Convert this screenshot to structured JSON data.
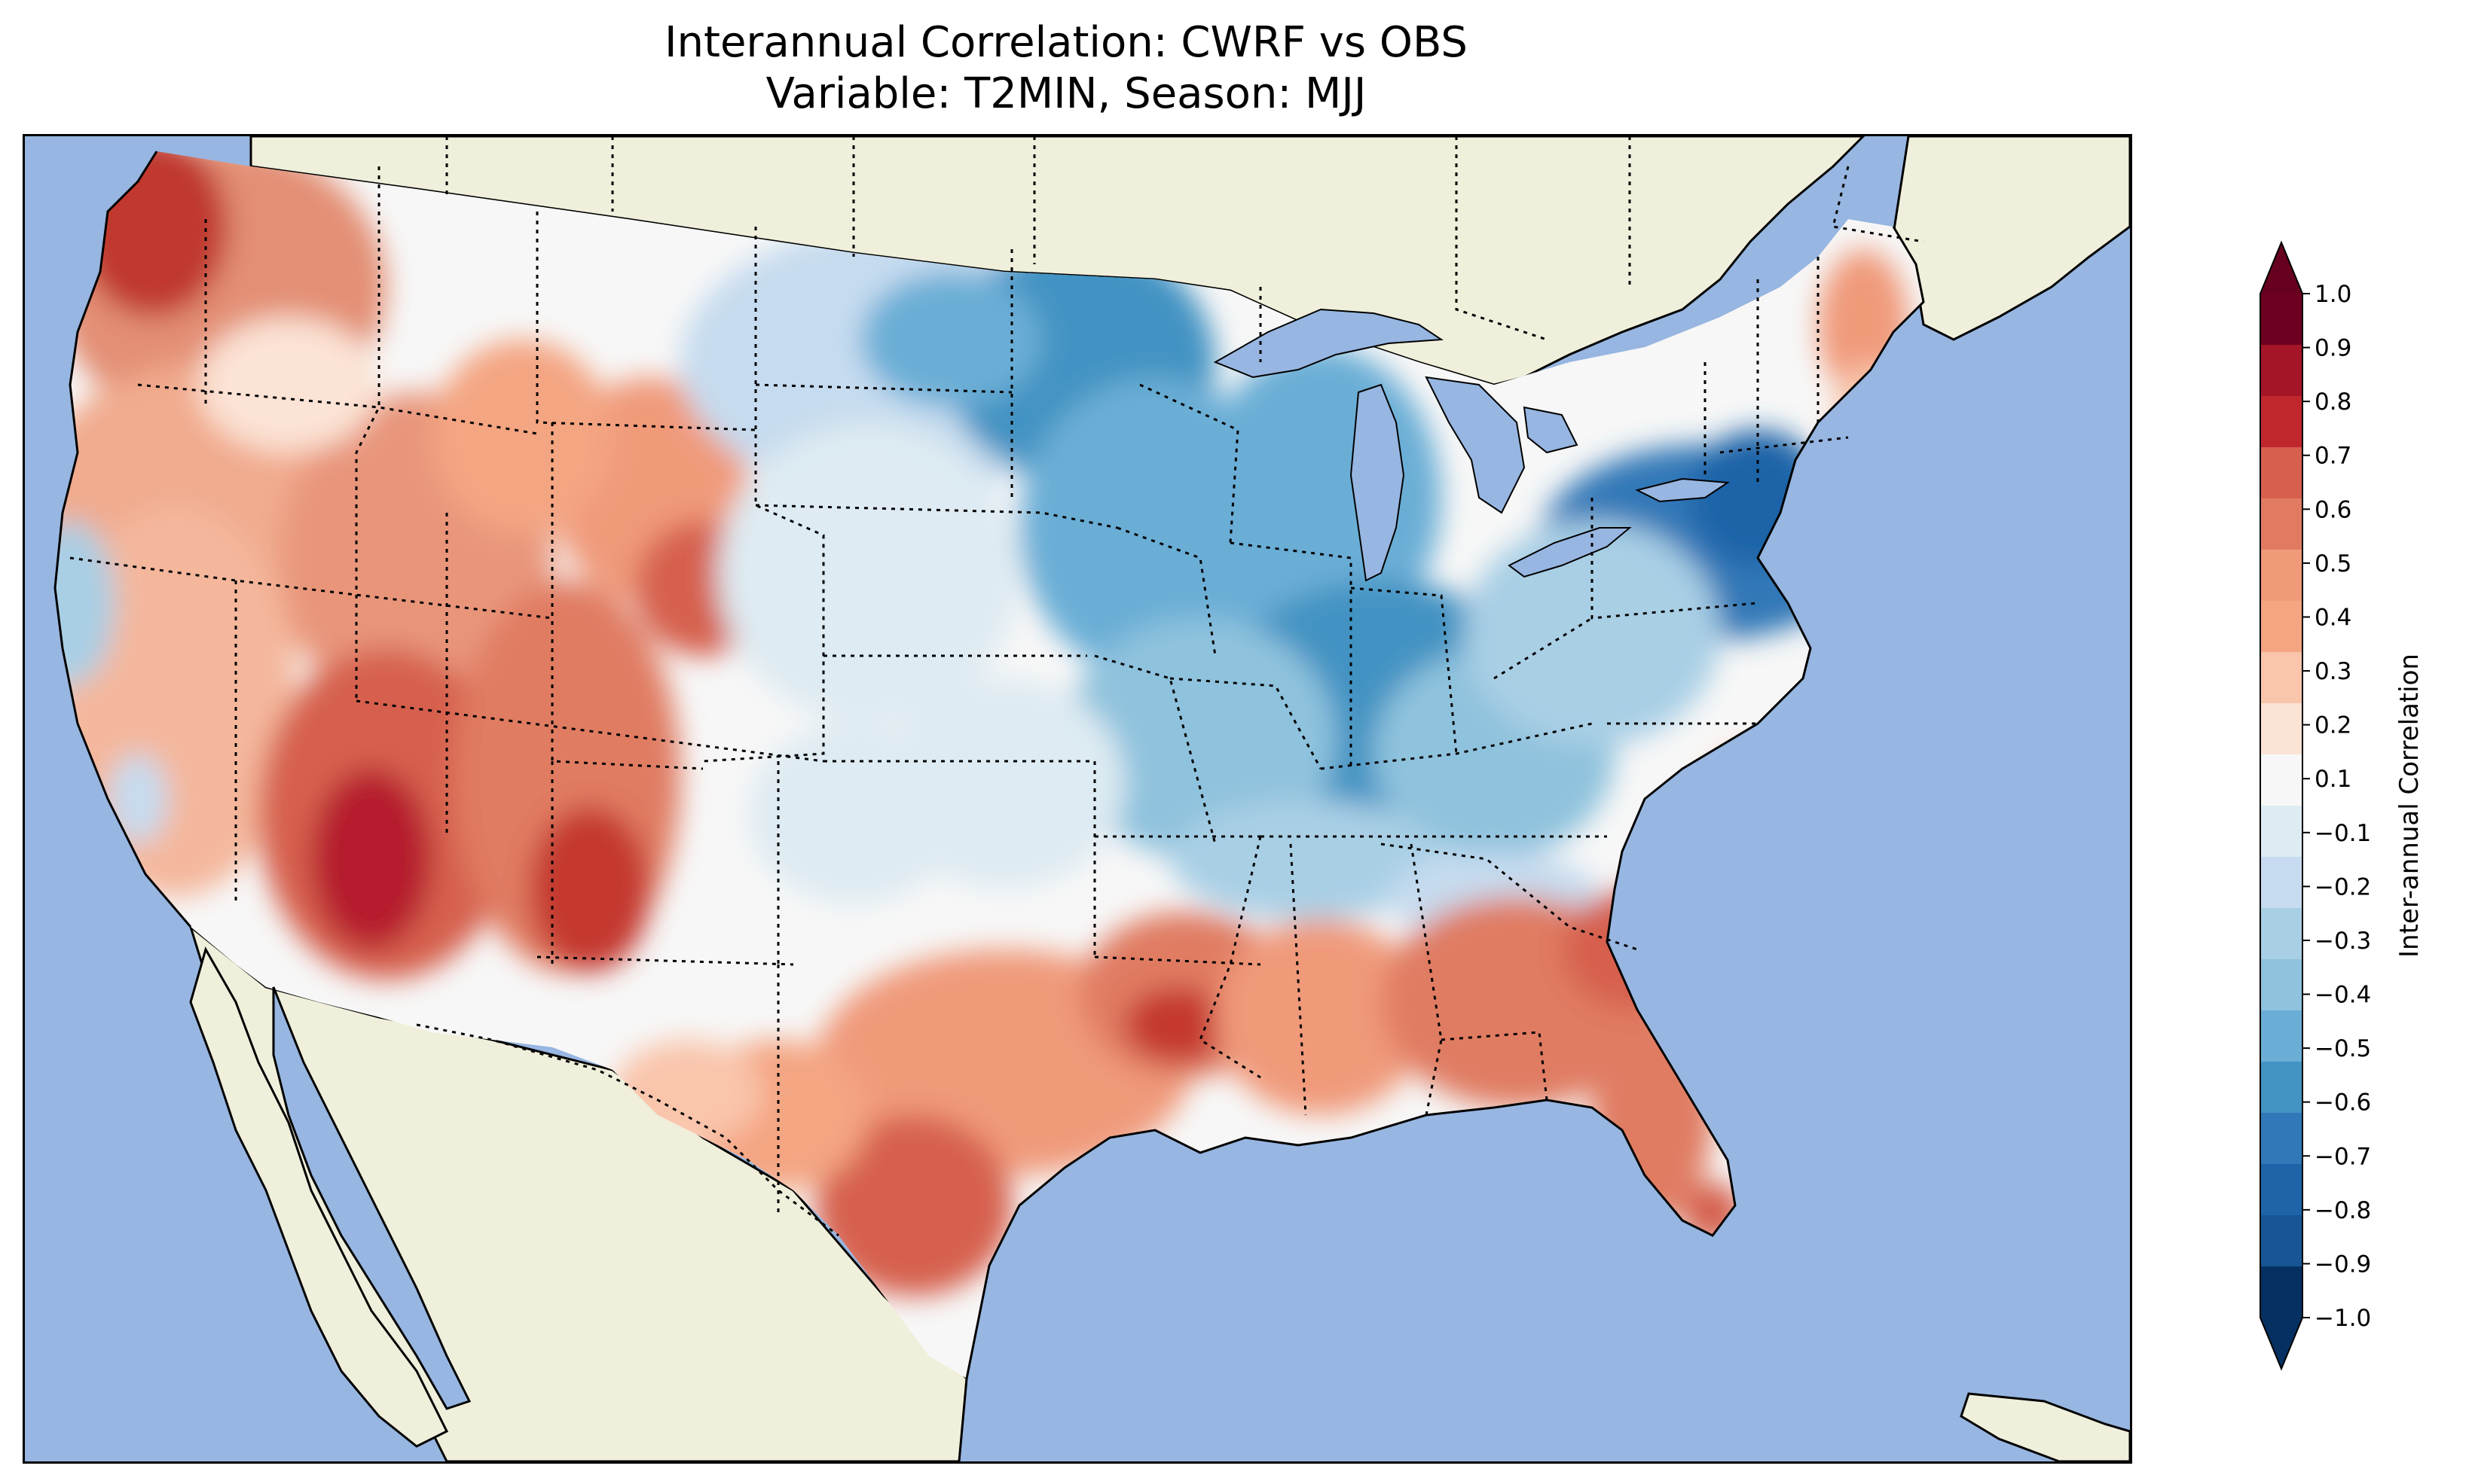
{
  "title": {
    "line1": "Interannual Correlation: CWRF vs OBS",
    "line2": "Variable: T2MIN, Season: MJJ"
  },
  "colors": {
    "ocean": "#97b6e1",
    "land": "#efefdb",
    "lakes": "#97b6e1",
    "coastline": "#000000",
    "state_borders": "#000000"
  },
  "colorbar": {
    "label": "Inter-annual Correlation",
    "min": -1.0,
    "max": 1.0,
    "ticks": [
      "1.0",
      "0.9",
      "0.8",
      "0.7",
      "0.6",
      "0.5",
      "0.4",
      "0.3",
      "0.2",
      "0.1",
      "−0.1",
      "−0.2",
      "−0.3",
      "−0.4",
      "−0.5",
      "−0.6",
      "−0.7",
      "−0.8",
      "−0.9",
      "−1.0"
    ],
    "extend": "both",
    "colormap": "RdBu_r",
    "bin_colors_top_to_bottom": [
      "#6d0021",
      "#a51528",
      "#c0272d",
      "#d6604d",
      "#e07b62",
      "#f09a7a",
      "#f4a582",
      "#f9c5ab",
      "#fbe3d5",
      "#f7f7f7",
      "#deebf2",
      "#c6dbef",
      "#a9cfe5",
      "#8fc2dd",
      "#6aaed6",
      "#4393c3",
      "#3078b7",
      "#1f63a8",
      "#175595",
      "#053061"
    ],
    "extend_max_color": "#67001f",
    "extend_min_color": "#053061"
  },
  "map": {
    "projection": "Lambert Conformal (CONUS)",
    "features": [
      "ocean",
      "land",
      "lakes",
      "coastline",
      "state boundaries (dotted)",
      "country borders"
    ],
    "field_summary": {
      "positive_regions": [
        "Pacific Northwest",
        "Southwest",
        "Rocky Mountains",
        "Texas",
        "Gulf Coast",
        "Southeast",
        "Florida",
        "New England coast"
      ],
      "negative_regions": [
        "Upper Midwest",
        "Great Lakes",
        "Ohio Valley",
        "Pennsylvania / New York",
        "Central Plains"
      ]
    }
  }
}
